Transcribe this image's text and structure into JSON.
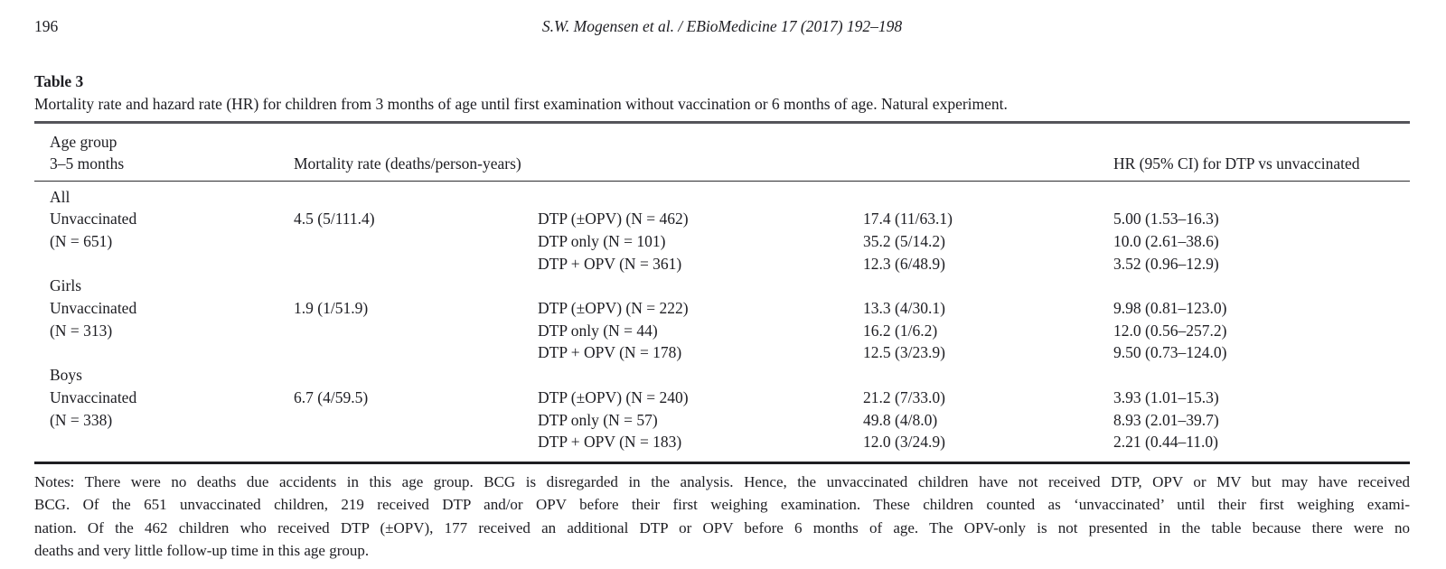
{
  "colors": {
    "ink": "#1d1d22",
    "rule_light": "#55555a",
    "rule_mid": "#2c2c30",
    "rule_dark": "#1e1e22"
  },
  "pagehead": {
    "page_number": "196",
    "running_head": "S.W. Mogensen et al. / EBioMedicine 17 (2017) 192–198"
  },
  "table": {
    "label": "Table 3",
    "caption": "Mortality rate and hazard rate (HR) for children from 3 months of age until first examination without vaccination or 6 months of age. Natural experiment.",
    "header": {
      "age_group_line1": "Age group",
      "age_group_line2": "3–5 months",
      "mortality": "Mortality rate (deaths/person-years)",
      "hr": "HR (95% CI) for DTP vs unvaccinated"
    },
    "groups": [
      {
        "group_label": "All",
        "row_label": "Unvaccinated",
        "row_sub": "(N = 651)",
        "unvaccinated_rate": "4.5 (5/111.4)",
        "rows": [
          {
            "arm": "DTP (±OPV) (N = 462)",
            "rate": "17.4 (11/63.1)",
            "hr": "5.00 (1.53–16.3)"
          },
          {
            "arm": "DTP only (N = 101)",
            "rate": "35.2 (5/14.2)",
            "hr": "10.0 (2.61–38.6)"
          },
          {
            "arm": "DTP + OPV (N = 361)",
            "rate": "12.3 (6/48.9)",
            "hr": "3.52 (0.96–12.9)"
          }
        ]
      },
      {
        "group_label": "Girls",
        "row_label": "Unvaccinated",
        "row_sub": "(N = 313)",
        "unvaccinated_rate": "1.9 (1/51.9)",
        "rows": [
          {
            "arm": "DTP (±OPV) (N = 222)",
            "rate": "13.3 (4/30.1)",
            "hr": "9.98 (0.81–123.0)"
          },
          {
            "arm": "DTP only (N = 44)",
            "rate": "16.2 (1/6.2)",
            "hr": "12.0 (0.56–257.2)"
          },
          {
            "arm": "DTP + OPV (N = 178)",
            "rate": "12.5 (3/23.9)",
            "hr": "9.50 (0.73–124.0)"
          }
        ]
      },
      {
        "group_label": "Boys",
        "row_label": "Unvaccinated",
        "row_sub": "(N = 338)",
        "unvaccinated_rate": "6.7 (4/59.5)",
        "rows": [
          {
            "arm": "DTP (±OPV) (N = 240)",
            "rate": "21.2 (7/33.0)",
            "hr": "3.93 (1.01–15.3)"
          },
          {
            "arm": "DTP only (N = 57)",
            "rate": "49.8 (4/8.0)",
            "hr": "8.93 (2.01–39.7)"
          },
          {
            "arm": "DTP + OPV (N = 183)",
            "rate": "12.0 (3/24.9)",
            "hr": "2.21 (0.44–11.0)"
          }
        ]
      }
    ],
    "notes_lines": [
      "Notes: There were no deaths due accidents in this age group. BCG is disregarded in the analysis. Hence, the unvaccinated children have not received DTP, OPV or MV but may have received",
      "BCG. Of the 651 unvaccinated children, 219 received DTP and/or OPV before their first weighing examination. These children counted as ‘unvaccinated’ until their first weighing exami-",
      "nation. Of the 462 children who received DTP (±OPV), 177 received an additional DTP or OPV before 6 months of age. The OPV-only is not presented in the table because there were no",
      "deaths and very little follow-up time in this age group."
    ]
  }
}
